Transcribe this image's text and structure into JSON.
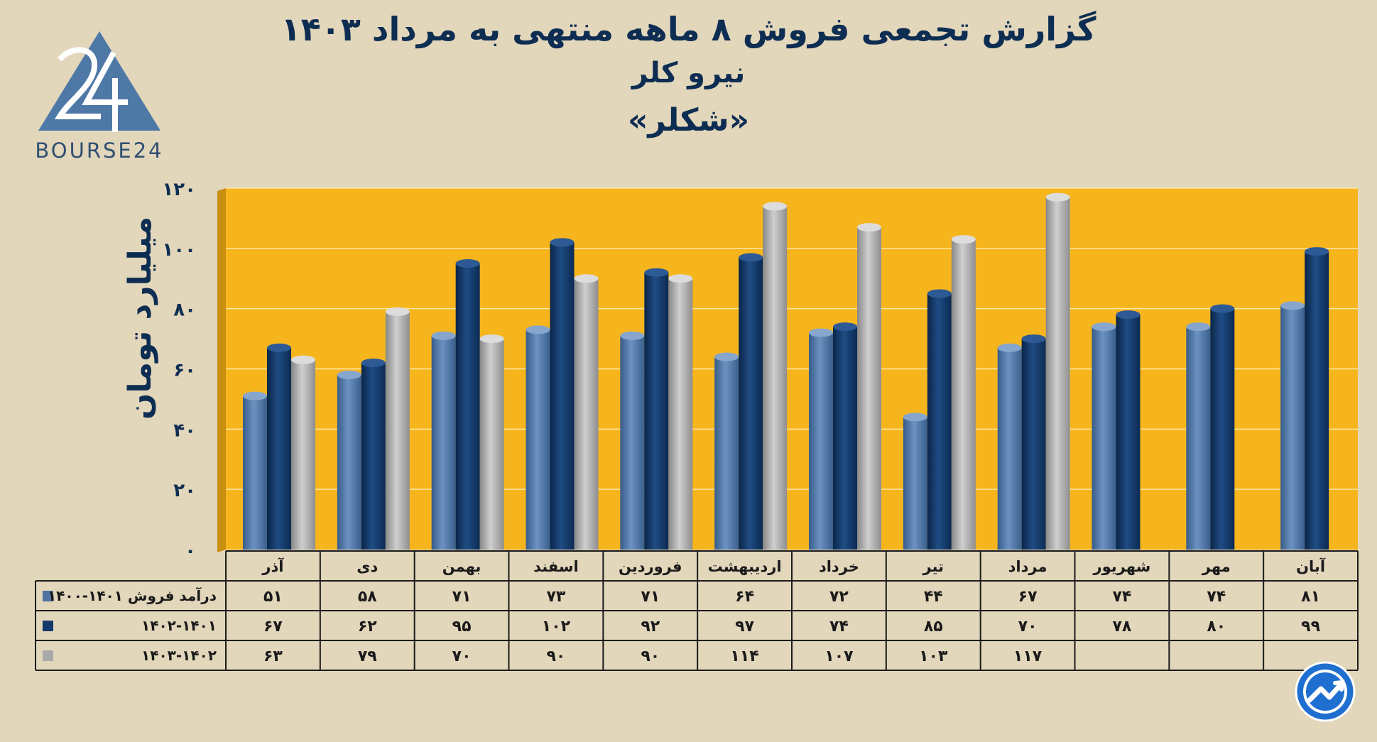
{
  "title": {
    "line1": "گزارش تجمعی فروش ۸ ماهه منتهی به مرداد ۱۴۰۳",
    "line2": "نیرو کلر",
    "line3": "«شکلر»"
  },
  "logo": {
    "text": "BOURSE24",
    "mark": "24"
  },
  "badge": {
    "icon": "chart-trend-badge-icon"
  },
  "colors": {
    "plot_bg": "#f7b51d",
    "s1": "#4f74a3",
    "s2": "#13386a",
    "s3": "#a9a9a9",
    "text": "#0d2d52"
  },
  "chart_data": {
    "type": "bar",
    "ylabel": "میلیارد تومان",
    "ylim": [
      0,
      120
    ],
    "yticks": [
      0,
      20,
      40,
      60,
      80,
      100,
      120
    ],
    "ytick_labels": [
      "۰",
      "۲۰",
      "۴۰",
      "۶۰",
      "۸۰",
      "۱۰۰",
      "۱۲۰"
    ],
    "categories": [
      "آذر",
      "دی",
      "بهمن",
      "اسفند",
      "فروردین",
      "اردیبهشت",
      "خرداد",
      "تیر",
      "مرداد",
      "شهریور",
      "مهر",
      "آبان"
    ],
    "series": [
      {
        "name": "درآمد فروش ۱۴۰۱-۱۴۰۰",
        "values": [
          51,
          58,
          71,
          73,
          71,
          64,
          72,
          44,
          67,
          74,
          74,
          81
        ],
        "labels": [
          "۵۱",
          "۵۸",
          "۷۱",
          "۷۳",
          "۷۱",
          "۶۴",
          "۷۲",
          "۴۴",
          "۶۷",
          "۷۴",
          "۷۴",
          "۸۱"
        ]
      },
      {
        "name": "۱۴۰۲-۱۴۰۱",
        "values": [
          67,
          62,
          95,
          102,
          92,
          97,
          74,
          85,
          70,
          78,
          80,
          99
        ],
        "labels": [
          "۶۷",
          "۶۲",
          "۹۵",
          "۱۰۲",
          "۹۲",
          "۹۷",
          "۷۴",
          "۸۵",
          "۷۰",
          "۷۸",
          "۸۰",
          "۹۹"
        ]
      },
      {
        "name": "۱۴۰۳-۱۴۰۲",
        "values": [
          63,
          79,
          70,
          90,
          90,
          114,
          107,
          103,
          117,
          null,
          null,
          null
        ],
        "labels": [
          "۶۳",
          "۷۹",
          "۷۰",
          "۹۰",
          "۹۰",
          "۱۱۴",
          "۱۰۷",
          "۱۰۳",
          "۱۱۷",
          "",
          "",
          ""
        ]
      }
    ],
    "table": true,
    "grid": true
  }
}
